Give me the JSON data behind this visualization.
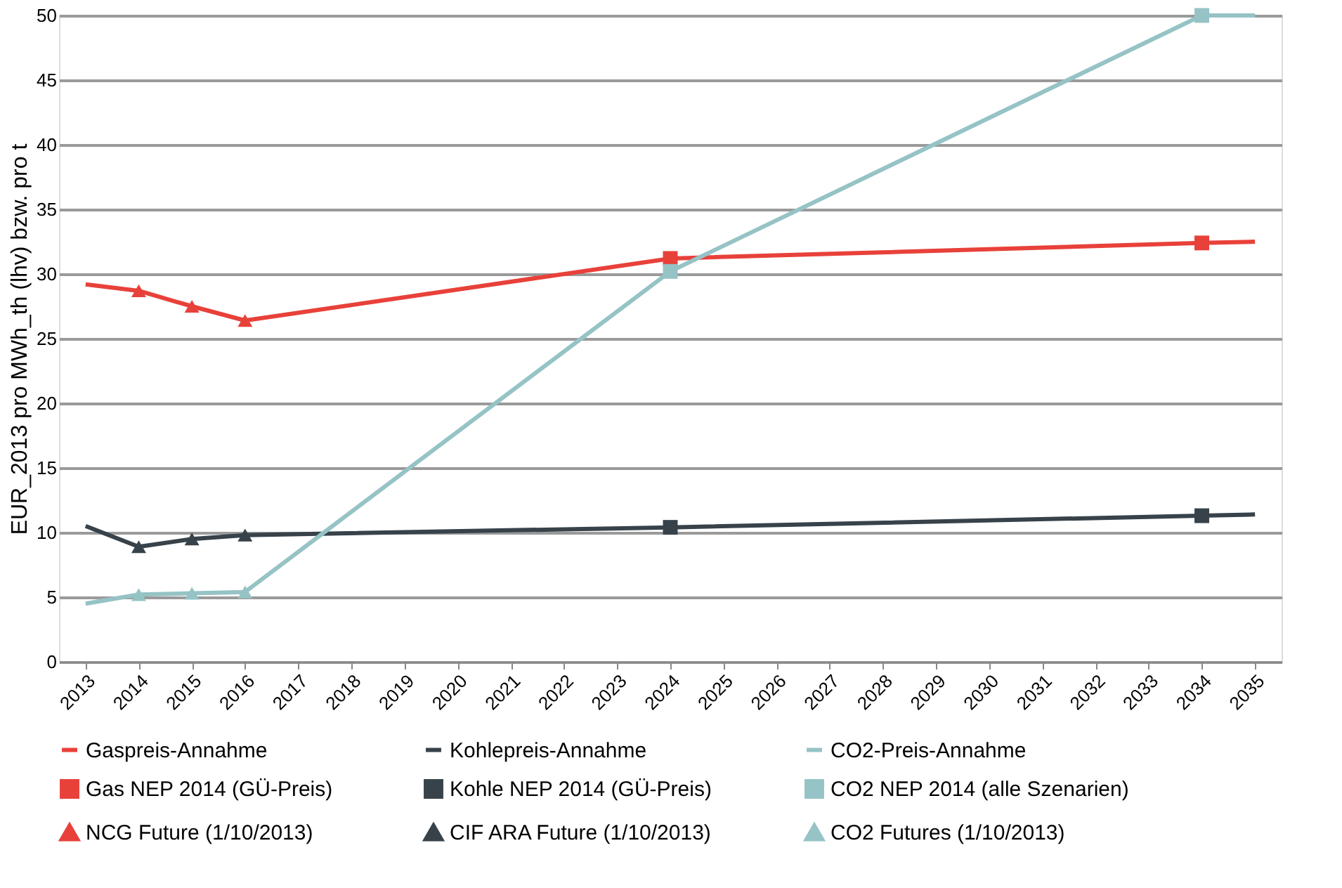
{
  "chart_data": {
    "type": "line",
    "ylabel": "EUR_2013 pro MWh_th (lhv) bzw. pro t",
    "xlim": [
      2012.5,
      2035.5
    ],
    "xticks": [
      2013,
      2014,
      2015,
      2016,
      2017,
      2018,
      2019,
      2020,
      2021,
      2022,
      2023,
      2024,
      2025,
      2026,
      2027,
      2028,
      2029,
      2030,
      2031,
      2032,
      2033,
      2034,
      2035
    ],
    "ylim": [
      0,
      50
    ],
    "yticks": [
      0,
      5,
      10,
      15,
      20,
      25,
      30,
      35,
      40,
      45,
      50
    ],
    "grid": "y",
    "legend": "bottom",
    "series": [
      {
        "name": "Gaspreis-Annahme",
        "color": "#e8413a",
        "x": [
          2013,
          2014,
          2015,
          2016,
          2024,
          2034,
          2035
        ],
        "values": [
          29.2,
          28.7,
          27.5,
          26.4,
          31.2,
          32.4,
          32.5
        ]
      },
      {
        "name": "Kohlepreis-Annahme",
        "color": "#37424a",
        "x": [
          2013,
          2014,
          2015,
          2016,
          2024,
          2034,
          2035
        ],
        "values": [
          10.5,
          8.9,
          9.5,
          9.8,
          10.4,
          11.3,
          11.4
        ]
      },
      {
        "name": "CO2-Preis-Annahme",
        "color": "#96c3c5",
        "x": [
          2013,
          2014,
          2015,
          2016,
          2024,
          2034,
          2035
        ],
        "values": [
          4.5,
          5.2,
          5.3,
          5.4,
          30.2,
          50,
          50
        ]
      },
      {
        "name": "Gas NEP 2014 (GÜ-Preis)",
        "type": "scatter",
        "color": "#e8413a",
        "marker": "square",
        "x": [
          2024,
          2034
        ],
        "values": [
          31.2,
          32.4
        ]
      },
      {
        "name": "Kohle NEP 2014 (GÜ-Preis)",
        "type": "scatter",
        "color": "#37424a",
        "marker": "square",
        "x": [
          2024,
          2034
        ],
        "values": [
          10.4,
          11.3
        ]
      },
      {
        "name": "CO2 NEP 2014 (alle Szenarien)",
        "type": "scatter",
        "color": "#96c3c5",
        "marker": "square",
        "x": [
          2024,
          2034
        ],
        "values": [
          30.2,
          50
        ]
      },
      {
        "name": "NCG Future (1/10/2013)",
        "type": "scatter",
        "color": "#e8413a",
        "marker": "triangle",
        "x": [
          2014,
          2015,
          2016
        ],
        "values": [
          28.7,
          27.5,
          26.4
        ]
      },
      {
        "name": "CIF ARA Future (1/10/2013)",
        "type": "scatter",
        "color": "#37424a",
        "marker": "triangle",
        "x": [
          2014,
          2015,
          2016
        ],
        "values": [
          8.9,
          9.5,
          9.8
        ]
      },
      {
        "name": "CO2 Futures (1/10/2013)",
        "type": "scatter",
        "color": "#96c3c5",
        "marker": "triangle",
        "x": [
          2014,
          2015,
          2016
        ],
        "values": [
          5.2,
          5.3,
          5.4
        ]
      }
    ]
  }
}
